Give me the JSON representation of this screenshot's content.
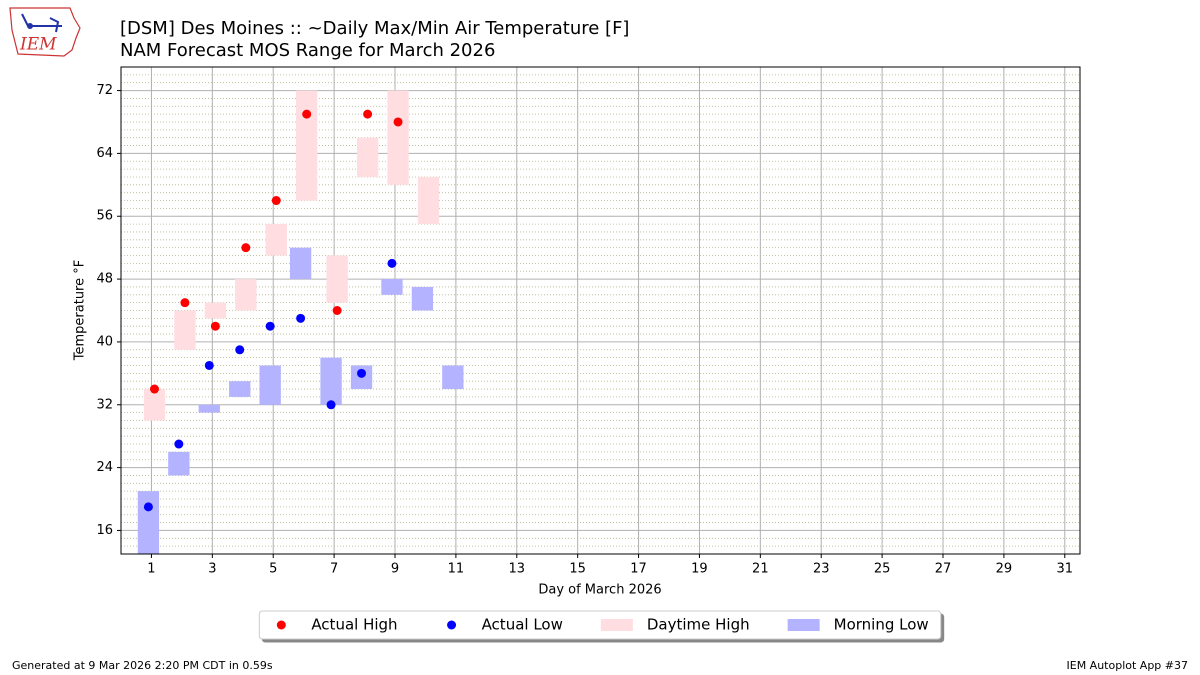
{
  "logo_text": "IEM",
  "footer_left": "Generated at 9 Mar 2026 2:20 PM CDT in 0.59s",
  "footer_right": "IEM Autoplot App #37",
  "chart_data": {
    "type": "range",
    "title": "[DSM] Des Moines :: ~Daily Max/Min Air Temperature [F]",
    "subtitle": "NAM Forecast MOS Range for March 2026",
    "xlabel": "Day of March 2026",
    "ylabel": "Temperature °F",
    "xlim": [
      0,
      31.5
    ],
    "xticks": [
      1,
      3,
      5,
      7,
      9,
      11,
      13,
      15,
      17,
      19,
      21,
      23,
      25,
      27,
      29,
      31
    ],
    "ylim": [
      13,
      75
    ],
    "yticks": [
      16,
      24,
      32,
      40,
      48,
      56,
      64,
      72
    ],
    "yminorticks": [
      14,
      15,
      17,
      18,
      19,
      20,
      21,
      22,
      23,
      25,
      26,
      27,
      28,
      29,
      30,
      31,
      33,
      34,
      35,
      36,
      37,
      38,
      39,
      41,
      42,
      43,
      44,
      45,
      46,
      47,
      49,
      50,
      51,
      52,
      53,
      54,
      55,
      57,
      58,
      59,
      60,
      61,
      62,
      63,
      65,
      66,
      67,
      68,
      69,
      70,
      71,
      73,
      74
    ],
    "grid": true,
    "legend": "below",
    "series": [
      {
        "name": "Actual High",
        "type": "scatter",
        "color": "#ff0000",
        "x": [
          1,
          2,
          3,
          4,
          5,
          6,
          7,
          8,
          9
        ],
        "values": [
          34,
          45,
          42,
          52,
          58,
          69,
          44,
          69,
          68
        ]
      },
      {
        "name": "Actual Low",
        "type": "scatter",
        "color": "#0000ff",
        "x": [
          1,
          2,
          3,
          4,
          5,
          6,
          7,
          8,
          9
        ],
        "values": [
          19,
          27,
          37,
          39,
          42,
          43,
          32,
          36,
          50
        ]
      },
      {
        "name": "Daytime High",
        "type": "range",
        "color": "#ffdde1",
        "x": [
          1,
          2,
          3,
          4,
          5,
          6,
          7,
          8,
          9,
          10
        ],
        "low": [
          30,
          39,
          43,
          44,
          51,
          58,
          45,
          61,
          60,
          55
        ],
        "high": [
          34,
          44,
          45,
          48,
          55,
          72,
          51,
          66,
          72,
          61
        ]
      },
      {
        "name": "Morning Low",
        "type": "range",
        "color": "#b3b3ff",
        "x": [
          1,
          2,
          3,
          4,
          5,
          6,
          7,
          8,
          9,
          10,
          11
        ],
        "low": [
          12,
          23,
          31,
          33,
          32,
          48,
          32,
          34,
          46,
          44,
          34
        ],
        "high": [
          21,
          26,
          32,
          35,
          37,
          52,
          38,
          37,
          48,
          47,
          37
        ]
      }
    ]
  }
}
